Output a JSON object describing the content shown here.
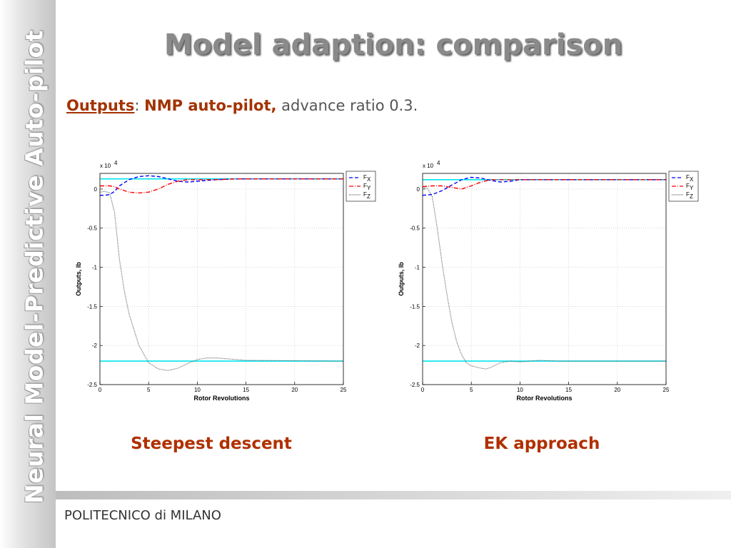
{
  "sidebar": {
    "text": "Neural Model-Predictive Auto-pilot"
  },
  "title": "Model adaption: comparison",
  "subtitle": {
    "part1": "Outputs",
    "sep": ": ",
    "part2": "NMP auto-pilot,",
    "part3": " advance ratio 0.3."
  },
  "captions": {
    "left": "Steepest descent",
    "right": "EK approach"
  },
  "footer": "POLITECNICO di MILANO",
  "chart_data": [
    {
      "type": "line",
      "caption": "Steepest descent",
      "xlabel": "Rotor Revolutions",
      "ylabel": "Outputs, lb",
      "multiplier_label": "x 10",
      "multiplier_exp": "4",
      "xlim": [
        0,
        25
      ],
      "ylim": [
        -2.5,
        0.2
      ],
      "xticks": [
        "0",
        "5",
        "10",
        "15",
        "20",
        "25"
      ],
      "yticks": [
        "0",
        "-0.5",
        "-1",
        "-1.5",
        "-2",
        "-2.5"
      ],
      "grid": true,
      "legend": {
        "placement": "top-right",
        "entries": [
          {
            "base": "F",
            "sub": "X"
          },
          {
            "base": "F",
            "sub": "Y"
          },
          {
            "base": "F",
            "sub": "Z"
          }
        ]
      },
      "reference_lines": [
        0.13,
        -2.2
      ],
      "reference_color": "#00e5ee",
      "series": [
        {
          "name": "FX",
          "color": "#0000ff",
          "dash": "5,3",
          "points": [
            [
              0,
              -0.08
            ],
            [
              0.5,
              -0.08
            ],
            [
              1,
              -0.07
            ],
            [
              1.5,
              -0.03
            ],
            [
              2,
              0.04
            ],
            [
              3,
              0.12
            ],
            [
              4,
              0.16
            ],
            [
              5,
              0.17
            ],
            [
              6,
              0.16
            ],
            [
              7,
              0.13
            ],
            [
              8,
              0.1
            ],
            [
              9,
              0.09
            ],
            [
              10,
              0.1
            ],
            [
              12,
              0.12
            ],
            [
              14,
              0.13
            ],
            [
              25,
              0.13
            ]
          ]
        },
        {
          "name": "FY",
          "color": "#ff0000",
          "dash": "6,2,1,2",
          "points": [
            [
              0,
              0.04
            ],
            [
              1,
              0.04
            ],
            [
              1.5,
              0.03
            ],
            [
              2,
              0
            ],
            [
              3,
              -0.04
            ],
            [
              4,
              -0.05
            ],
            [
              5,
              -0.04
            ],
            [
              6,
              0
            ],
            [
              7,
              0.06
            ],
            [
              8,
              0.1
            ],
            [
              9,
              0.12
            ],
            [
              10,
              0.12
            ],
            [
              12,
              0.12
            ],
            [
              14,
              0.13
            ],
            [
              25,
              0.13
            ]
          ]
        },
        {
          "name": "FZ",
          "color": "#555555",
          "dash": "1,1.2",
          "points": [
            [
              0,
              -0.04
            ],
            [
              0.5,
              -0.03
            ],
            [
              1,
              -0.05
            ],
            [
              1.5,
              -0.3
            ],
            [
              2,
              -0.9
            ],
            [
              2.5,
              -1.3
            ],
            [
              3,
              -1.6
            ],
            [
              4,
              -2.0
            ],
            [
              5,
              -2.22
            ],
            [
              6,
              -2.3
            ],
            [
              7,
              -2.32
            ],
            [
              8,
              -2.29
            ],
            [
              9,
              -2.23
            ],
            [
              10,
              -2.18
            ],
            [
              11,
              -2.16
            ],
            [
              12,
              -2.16
            ],
            [
              13,
              -2.17
            ],
            [
              15,
              -2.19
            ],
            [
              25,
              -2.2
            ]
          ]
        }
      ]
    },
    {
      "type": "line",
      "caption": "EK approach",
      "xlabel": "Rotor Revolutions",
      "ylabel": "Outputs, lb",
      "multiplier_label": "x 10",
      "multiplier_exp": "4",
      "xlim": [
        0,
        25
      ],
      "ylim": [
        -2.5,
        0.2
      ],
      "xticks": [
        "0",
        "5",
        "10",
        "15",
        "20",
        "25"
      ],
      "yticks": [
        "0",
        "-0.5",
        "-1",
        "-1.5",
        "-2",
        "-2.5"
      ],
      "grid": true,
      "legend": {
        "placement": "top-right",
        "entries": [
          {
            "base": "F",
            "sub": "X"
          },
          {
            "base": "F",
            "sub": "Y"
          },
          {
            "base": "F",
            "sub": "Z"
          }
        ]
      },
      "reference_lines": [
        0.12,
        -2.2
      ],
      "reference_color": "#00e5ee",
      "series": [
        {
          "name": "FX",
          "color": "#0000ff",
          "dash": "5,3",
          "points": [
            [
              0,
              -0.08
            ],
            [
              1,
              -0.07
            ],
            [
              2,
              -0.02
            ],
            [
              3,
              0.05
            ],
            [
              4,
              0.12
            ],
            [
              5,
              0.15
            ],
            [
              6,
              0.14
            ],
            [
              7,
              0.11
            ],
            [
              8,
              0.09
            ],
            [
              9,
              0.1
            ],
            [
              10,
              0.12
            ],
            [
              25,
              0.12
            ]
          ]
        },
        {
          "name": "FY",
          "color": "#ff0000",
          "dash": "6,2,1,2",
          "points": [
            [
              0,
              0.03
            ],
            [
              1,
              0.04
            ],
            [
              2,
              0.04
            ],
            [
              3,
              0.02
            ],
            [
              4,
              0
            ],
            [
              5,
              0.04
            ],
            [
              6,
              0.09
            ],
            [
              7,
              0.12
            ],
            [
              8,
              0.12
            ],
            [
              10,
              0.12
            ],
            [
              25,
              0.12
            ]
          ]
        },
        {
          "name": "FZ",
          "color": "#555555",
          "dash": "1,1.2",
          "points": [
            [
              0,
              0.02
            ],
            [
              0.5,
              0.01
            ],
            [
              1,
              -0.1
            ],
            [
              1.5,
              -0.5
            ],
            [
              2,
              -0.95
            ],
            [
              2.5,
              -1.35
            ],
            [
              3,
              -1.7
            ],
            [
              3.5,
              -1.95
            ],
            [
              4,
              -2.12
            ],
            [
              4.5,
              -2.22
            ],
            [
              5,
              -2.26
            ],
            [
              6,
              -2.29
            ],
            [
              6.5,
              -2.3
            ],
            [
              7,
              -2.28
            ],
            [
              8,
              -2.22
            ],
            [
              9,
              -2.2
            ],
            [
              10,
              -2.21
            ],
            [
              12,
              -2.19
            ],
            [
              14,
              -2.2
            ],
            [
              25,
              -2.2
            ]
          ]
        }
      ]
    }
  ]
}
